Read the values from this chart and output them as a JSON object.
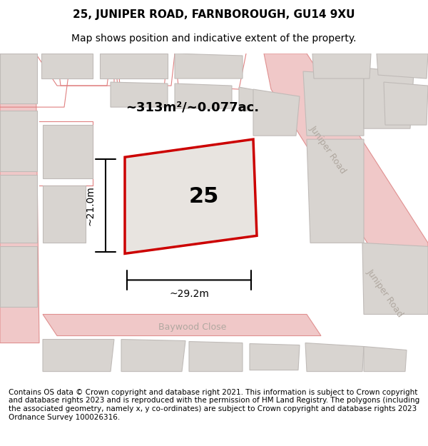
{
  "title_line1": "25, JUNIPER ROAD, FARNBOROUGH, GU14 9XU",
  "title_line2": "Map shows position and indicative extent of the property.",
  "footer_text": "Contains OS data © Crown copyright and database right 2021. This information is subject to Crown copyright and database rights 2023 and is reproduced with the permission of HM Land Registry. The polygons (including the associated geometry, namely x, y co-ordinates) are subject to Crown copyright and database rights 2023 Ordnance Survey 100026316.",
  "bg_color": "#f5f0f0",
  "map_bg": "#f0ece8",
  "building_color": "#d8d4d0",
  "building_outline": "#c8c4c0",
  "road_color": "#f5a0a0",
  "road_fill": "#f8d8d8",
  "highlight_color": "#e8e4e0",
  "red_outline": "#cc0000",
  "area_label": "~313m²/~0.077ac.",
  "width_label": "~29.2m",
  "height_label": "~21.0m",
  "number_label": "25",
  "juniper_road_label": "Juniper Road",
  "baywood_close_label": "Baywood Close",
  "title_fontsize": 11,
  "subtitle_fontsize": 10,
  "footer_fontsize": 7.5
}
